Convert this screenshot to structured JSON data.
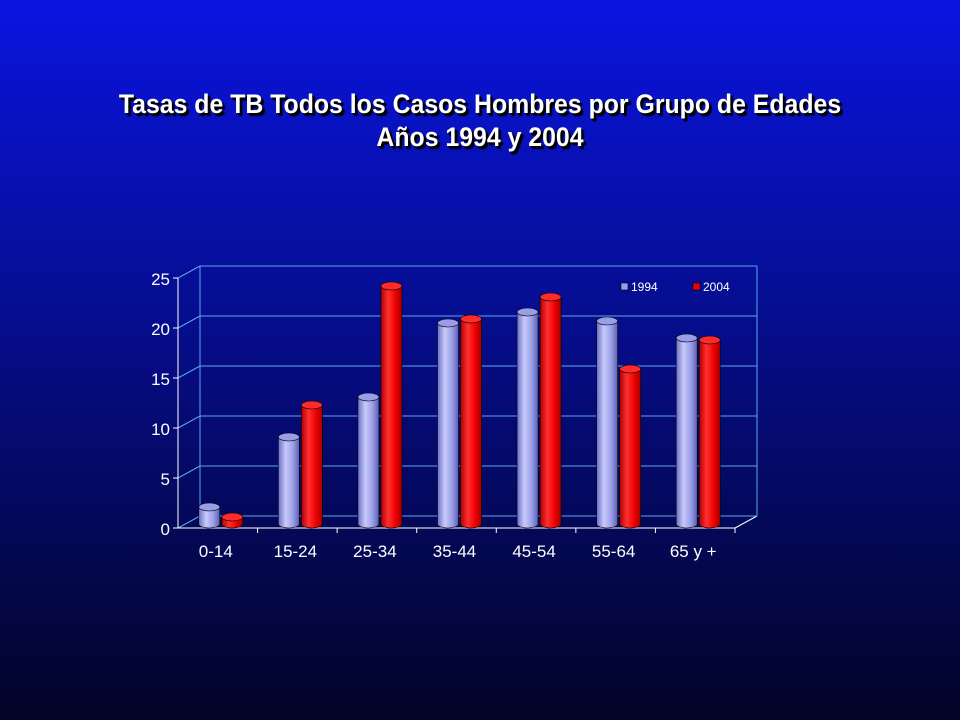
{
  "slide": {
    "title_line1": "Tasas de TB Todos los Casos Hombres por Grupo de Edades",
    "title_line2": "Años 1994 y 2004"
  },
  "colors": {
    "background_top": "#0a14e0",
    "background_bottom": "#020426",
    "gridline": "#5aa6f0",
    "series_1994": "#9a9ee8",
    "series_2004": "#ee0000"
  },
  "chart_data": {
    "type": "bar",
    "style": "3d-cylinder",
    "categories": [
      "0-14",
      "15-24",
      "25-34",
      "35-44",
      "45-54",
      "55-64",
      "65 y +"
    ],
    "series": [
      {
        "name": "1994",
        "values": [
          1.7,
          8.7,
          12.7,
          20.1,
          21.2,
          20.3,
          18.6
        ]
      },
      {
        "name": "2004",
        "values": [
          0.7,
          11.9,
          23.8,
          20.5,
          22.7,
          15.5,
          18.4
        ]
      }
    ],
    "yticks": [
      0,
      5,
      10,
      15,
      20,
      25
    ],
    "ylim": [
      0,
      25
    ],
    "grid": true,
    "legend_position": "top-right"
  }
}
